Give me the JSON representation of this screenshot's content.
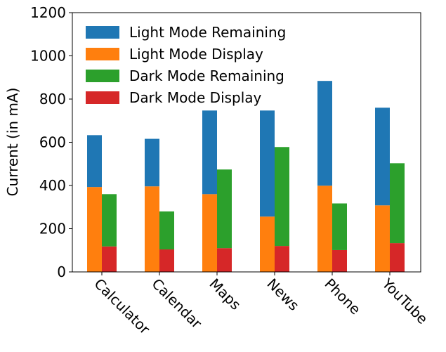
{
  "chart_data": {
    "type": "bar",
    "stacked": true,
    "categories": [
      "Calculator",
      "Calendar",
      "Maps",
      "News",
      "Phone",
      "YouTube"
    ],
    "ylabel": "Current (in mA)",
    "xlabel": "",
    "ylim": [
      0,
      1200
    ],
    "yticks": [
      "0",
      "200",
      "400",
      "600",
      "800",
      "1000",
      "1200"
    ],
    "grid": false,
    "legend_position": "top-left",
    "groups": [
      {
        "name": "Light Mode",
        "segments": [
          {
            "name": "Light Mode Display",
            "color": "#ff7f0e",
            "values": [
              393,
              396,
              360,
              256,
              399,
              308
            ]
          },
          {
            "name": "Light Mode Remaining",
            "color": "#1f77b4",
            "values": [
              240,
              220,
              387,
              491,
              485,
              452
            ]
          }
        ]
      },
      {
        "name": "Dark Mode",
        "segments": [
          {
            "name": "Dark Mode Display",
            "color": "#d62728",
            "values": [
              118,
              104,
              110,
              120,
              101,
              133
            ]
          },
          {
            "name": "Dark Mode Remaining",
            "color": "#2ca02c",
            "values": [
              242,
              176,
              364,
              458,
              216,
              370
            ]
          }
        ]
      }
    ],
    "legend": [
      {
        "label": "Light Mode Remaining",
        "color": "#1f77b4"
      },
      {
        "label": "Light Mode Display",
        "color": "#ff7f0e"
      },
      {
        "label": "Dark Mode Remaining",
        "color": "#2ca02c"
      },
      {
        "label": "Dark Mode Display",
        "color": "#d62728"
      }
    ]
  }
}
